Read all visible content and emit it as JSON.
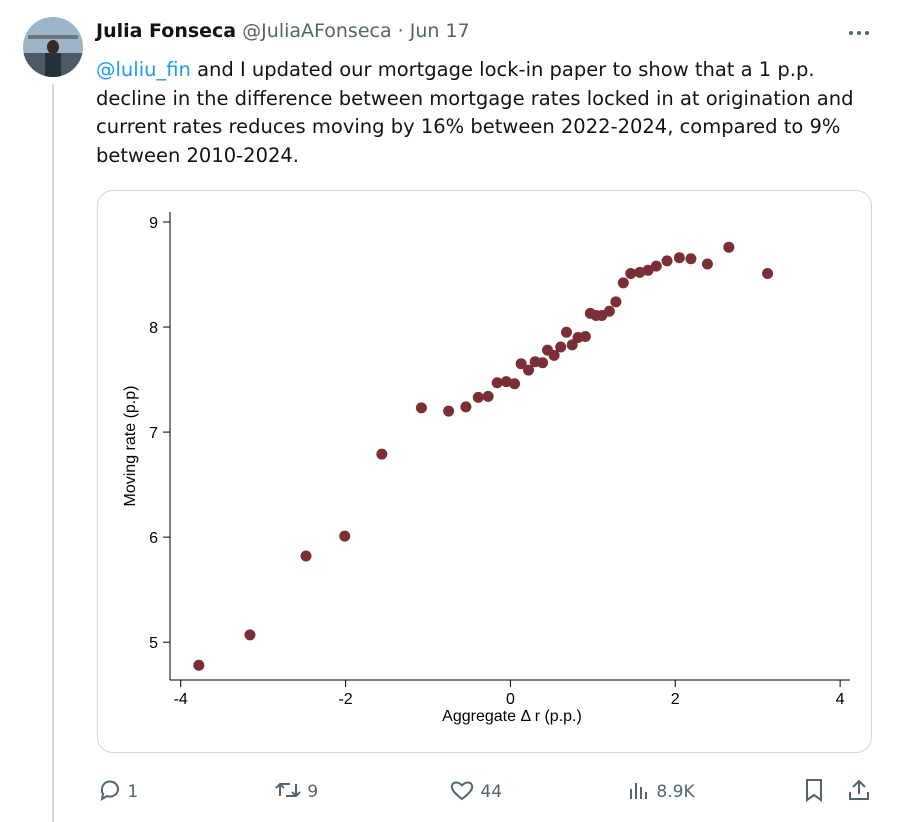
{
  "header": {
    "name": "Julia Fonseca",
    "handle": "@JuliaAFonseca",
    "separator": "·",
    "date": "Jun 17"
  },
  "text": {
    "mention": "@luliu_fin",
    "body": " and I updated our mortgage lock-in paper to show that a 1 p.p. decline in the difference between mortgage rates locked in at origination and current rates reduces moving by 16% between 2022-2024, compared to 9% between 2010-2024."
  },
  "chart_data": {
    "type": "scatter",
    "color": "#7b2f35",
    "x_label": "Aggregate Δ r (p.p.)",
    "y_label": "Moving rate (p.p)",
    "x": [
      -3.78,
      -3.16,
      -2.48,
      -2.01,
      -1.56,
      -1.08,
      -0.75,
      -0.54,
      -0.39,
      -0.27,
      -0.16,
      -0.05,
      0.05,
      0.13,
      0.22,
      0.3,
      0.39,
      0.45,
      0.53,
      0.61,
      0.68,
      0.75,
      0.82,
      0.91,
      0.97,
      1.04,
      1.11,
      1.2,
      1.28,
      1.37,
      1.46,
      1.57,
      1.67,
      1.77,
      1.9,
      2.05,
      2.19,
      2.39,
      2.65,
      3.12
    ],
    "values": [
      4.78,
      5.07,
      5.82,
      6.01,
      6.79,
      7.23,
      7.2,
      7.24,
      7.33,
      7.34,
      7.47,
      7.48,
      7.46,
      7.65,
      7.59,
      7.67,
      7.66,
      7.78,
      7.73,
      7.81,
      7.95,
      7.83,
      7.9,
      7.91,
      8.13,
      8.11,
      8.11,
      8.15,
      8.24,
      8.42,
      8.51,
      8.52,
      8.54,
      8.58,
      8.63,
      8.66,
      8.65,
      8.6,
      8.76,
      8.51
    ],
    "xlim": [
      -4.13,
      4.12
    ],
    "ylim": [
      4.64,
      9.095
    ],
    "xticks": [
      -4,
      -2,
      0,
      2,
      4
    ],
    "yticks": [
      5,
      6,
      7,
      8,
      9
    ],
    "grid": false
  },
  "actions": {
    "replies": "1",
    "reposts": "9",
    "likes": "44",
    "views": "8.9K"
  }
}
